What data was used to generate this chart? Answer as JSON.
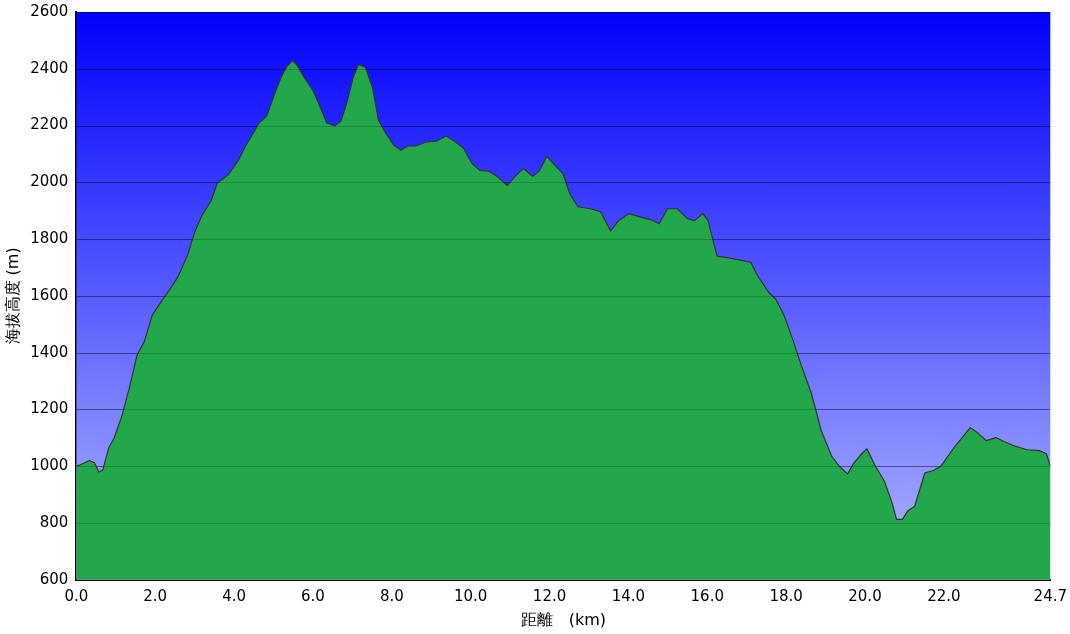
{
  "chart_data": {
    "type": "area",
    "xlabel": "距離　(km)",
    "ylabel": "海拔高度 (m)",
    "xlim": [
      0,
      24.7
    ],
    "ylim": [
      600,
      2600
    ],
    "xticks": [
      {
        "value": 0,
        "label": "0.0"
      },
      {
        "value": 2,
        "label": "2.0"
      },
      {
        "value": 4,
        "label": "4.0"
      },
      {
        "value": 6,
        "label": "6.0"
      },
      {
        "value": 8,
        "label": "8.0"
      },
      {
        "value": 10,
        "label": "10.0"
      },
      {
        "value": 12,
        "label": "12.0"
      },
      {
        "value": 14,
        "label": "14.0"
      },
      {
        "value": 16,
        "label": "16.0"
      },
      {
        "value": 18,
        "label": "18.0"
      },
      {
        "value": 20,
        "label": "20.0"
      },
      {
        "value": 22,
        "label": "22.0"
      },
      {
        "value": 24.7,
        "label": "24.7"
      }
    ],
    "yticks": [
      600,
      800,
      1000,
      1200,
      1400,
      1600,
      1800,
      2000,
      2200,
      2400,
      2600
    ],
    "grid": "y",
    "legend": false,
    "marker": "none",
    "series": [
      {
        "color": "#22a84a",
        "x": [
          0,
          0.1,
          0.33,
          0.46,
          0.57,
          0.67,
          0.82,
          0.95,
          1.16,
          1.36,
          1.54,
          1.72,
          1.93,
          2.19,
          2.37,
          2.57,
          2.83,
          3.01,
          3.21,
          3.42,
          3.57,
          3.86,
          4.11,
          4.29,
          4.5,
          4.63,
          4.83,
          5.01,
          5.19,
          5.32,
          5.48,
          5.6,
          5.78,
          5.99,
          6.17,
          6.35,
          6.56,
          6.71,
          6.86,
          7.02,
          7.15,
          7.33,
          7.51,
          7.66,
          7.84,
          8.05,
          8.23,
          8.41,
          8.61,
          8.87,
          9.13,
          9.38,
          9.59,
          9.82,
          10.03,
          10.23,
          10.46,
          10.67,
          10.93,
          11.13,
          11.34,
          11.57,
          11.75,
          11.93,
          12.16,
          12.34,
          12.52,
          12.72,
          13.03,
          13.29,
          13.55,
          13.75,
          14.01,
          14.27,
          14.58,
          14.78,
          14.99,
          15.24,
          15.5,
          15.68,
          15.89,
          16.02,
          16.25,
          16.58,
          17.1,
          17.3,
          17.56,
          17.74,
          17.94,
          18.17,
          18.38,
          18.64,
          18.89,
          19.15,
          19.36,
          19.56,
          19.72,
          19.92,
          20.05,
          20.26,
          20.49,
          20.69,
          20.8,
          20.95,
          21.08,
          21.26,
          21.52,
          21.72,
          21.93,
          22.24,
          22.67,
          22.88,
          23.08,
          23.32,
          23.52,
          23.78,
          24.11,
          24.42,
          24.6,
          24.7
        ],
        "values": [
          1001,
          1005,
          1020,
          1012,
          980,
          987,
          1065,
          1097,
          1179,
          1286,
          1392,
          1438,
          1534,
          1588,
          1623,
          1666,
          1747,
          1829,
          1890,
          1936,
          1996,
          2028,
          2078,
          2128,
          2177,
          2209,
          2234,
          2305,
          2369,
          2405,
          2429,
          2412,
          2369,
          2326,
          2270,
          2209,
          2199,
          2216,
          2280,
          2369,
          2415,
          2405,
          2334,
          2220,
          2174,
          2131,
          2113,
          2128,
          2128,
          2142,
          2145,
          2163,
          2145,
          2120,
          2067,
          2042,
          2039,
          2021,
          1989,
          2021,
          2049,
          2021,
          2042,
          2092,
          2056,
          2031,
          1957,
          1914,
          1907,
          1897,
          1829,
          1865,
          1890,
          1879,
          1868,
          1854,
          1907,
          1907,
          1872,
          1865,
          1890,
          1865,
          1740,
          1733,
          1719,
          1666,
          1612,
          1588,
          1534,
          1446,
          1357,
          1257,
          1126,
          1037,
          998,
          973,
          1012,
          1044,
          1062,
          1001,
          948,
          870,
          813,
          813,
          842,
          859,
          977,
          984,
          1001,
          1062,
          1136,
          1115,
          1090,
          1101,
          1087,
          1072,
          1058,
          1055,
          1044,
          1001
        ]
      }
    ]
  }
}
